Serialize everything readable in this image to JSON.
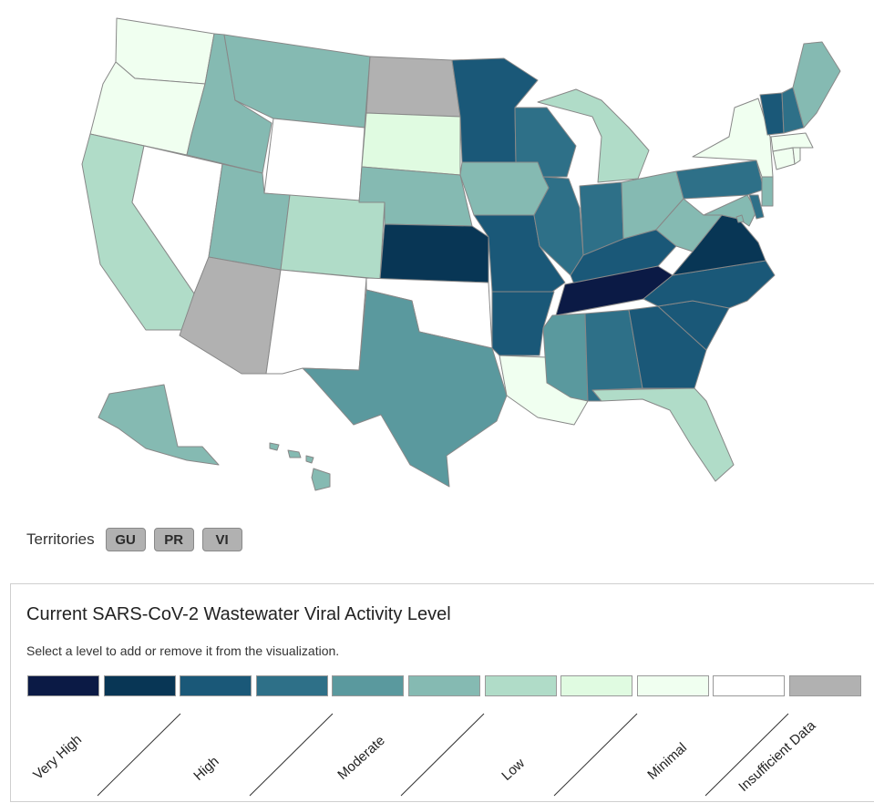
{
  "territories": {
    "label": "Territories",
    "buttons": [
      "GU",
      "PR",
      "VI"
    ]
  },
  "legend": {
    "title": "Current SARS-CoV-2 Wastewater Viral Activity Level",
    "hint": "Select a level to add or remove it from the visualization.",
    "levels": [
      {
        "key": "very-high-2",
        "color": "#0b1a45"
      },
      {
        "key": "very-high-1",
        "color": "#083655"
      },
      {
        "key": "high-2",
        "color": "#1a5878"
      },
      {
        "key": "high-1",
        "color": "#2e7088"
      },
      {
        "key": "moderate-2",
        "color": "#5a999e"
      },
      {
        "key": "moderate-1",
        "color": "#85bab2"
      },
      {
        "key": "low-2",
        "color": "#b0dcc8"
      },
      {
        "key": "low-1",
        "color": "#e0fbe1"
      },
      {
        "key": "minimal-2",
        "color": "#f0fff0"
      },
      {
        "key": "minimal-1",
        "color": "#ffffff"
      },
      {
        "key": "insufficient-data",
        "color": "#b1b1b1"
      }
    ],
    "labels": [
      "Very High",
      "High",
      "Moderate",
      "Low",
      "Minimal",
      "Insufficient Data"
    ]
  },
  "states": [
    {
      "abbr": "WA",
      "level": "minimal-2"
    },
    {
      "abbr": "OR",
      "level": "minimal-2"
    },
    {
      "abbr": "CA",
      "level": "low-2"
    },
    {
      "abbr": "NV",
      "level": "minimal-1"
    },
    {
      "abbr": "ID",
      "level": "moderate-1"
    },
    {
      "abbr": "MT",
      "level": "moderate-1"
    },
    {
      "abbr": "WY",
      "level": "minimal-1"
    },
    {
      "abbr": "UT",
      "level": "moderate-1"
    },
    {
      "abbr": "AZ",
      "level": "insufficient-data"
    },
    {
      "abbr": "CO",
      "level": "low-2"
    },
    {
      "abbr": "NM",
      "level": "minimal-1"
    },
    {
      "abbr": "ND",
      "level": "insufficient-data"
    },
    {
      "abbr": "SD",
      "level": "low-1"
    },
    {
      "abbr": "NE",
      "level": "moderate-1"
    },
    {
      "abbr": "KS",
      "level": "very-high-1"
    },
    {
      "abbr": "OK",
      "level": "minimal-1"
    },
    {
      "abbr": "TX",
      "level": "moderate-2"
    },
    {
      "abbr": "MN",
      "level": "high-2"
    },
    {
      "abbr": "IA",
      "level": "moderate-1"
    },
    {
      "abbr": "MO",
      "level": "high-2"
    },
    {
      "abbr": "AR",
      "level": "high-2"
    },
    {
      "abbr": "LA",
      "level": "minimal-2"
    },
    {
      "abbr": "WI",
      "level": "high-1"
    },
    {
      "abbr": "IL",
      "level": "high-1"
    },
    {
      "abbr": "MI",
      "level": "low-2"
    },
    {
      "abbr": "IN",
      "level": "high-1"
    },
    {
      "abbr": "OH",
      "level": "moderate-1"
    },
    {
      "abbr": "KY",
      "level": "high-2"
    },
    {
      "abbr": "TN",
      "level": "very-high-2"
    },
    {
      "abbr": "MS",
      "level": "moderate-2"
    },
    {
      "abbr": "AL",
      "level": "high-1"
    },
    {
      "abbr": "GA",
      "level": "high-2"
    },
    {
      "abbr": "FL",
      "level": "low-2"
    },
    {
      "abbr": "SC",
      "level": "high-2"
    },
    {
      "abbr": "NC",
      "level": "high-2"
    },
    {
      "abbr": "VA",
      "level": "very-high-1"
    },
    {
      "abbr": "WV",
      "level": "moderate-1"
    },
    {
      "abbr": "MD",
      "level": "moderate-1"
    },
    {
      "abbr": "DE",
      "level": "high-1"
    },
    {
      "abbr": "DC",
      "level": "moderate-1"
    },
    {
      "abbr": "PA",
      "level": "high-1"
    },
    {
      "abbr": "NJ",
      "level": "moderate-1"
    },
    {
      "abbr": "NY",
      "level": "minimal-2"
    },
    {
      "abbr": "CT",
      "level": "minimal-2"
    },
    {
      "abbr": "RI",
      "level": "minimal-2"
    },
    {
      "abbr": "MA",
      "level": "minimal-2"
    },
    {
      "abbr": "VT",
      "level": "high-2"
    },
    {
      "abbr": "NH",
      "level": "high-1"
    },
    {
      "abbr": "ME",
      "level": "moderate-1"
    },
    {
      "abbr": "AK",
      "level": "moderate-1"
    },
    {
      "abbr": "HI",
      "level": "moderate-1"
    }
  ]
}
